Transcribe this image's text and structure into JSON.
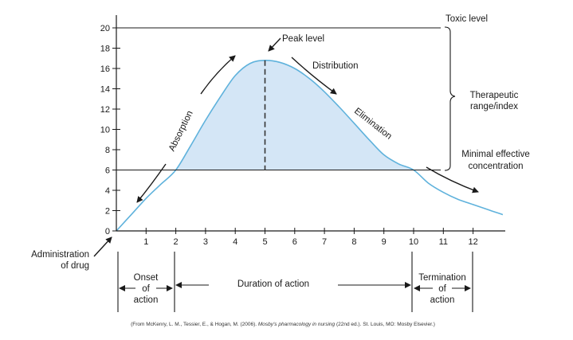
{
  "chart_data": {
    "type": "area",
    "x": [
      0,
      0.5,
      1,
      1.5,
      2,
      2.5,
      3,
      3.5,
      4,
      4.5,
      5,
      5.5,
      6,
      6.5,
      7,
      7.5,
      8,
      8.5,
      9,
      9.5,
      10,
      10.5,
      11,
      11.5,
      12,
      12.5,
      13
    ],
    "y": [
      0,
      1.6,
      3.2,
      4.6,
      6.0,
      8.4,
      10.9,
      13.2,
      15.3,
      16.5,
      16.8,
      16.6,
      16.0,
      15.0,
      13.7,
      12.2,
      10.6,
      9.0,
      7.5,
      6.6,
      6.0,
      4.7,
      3.8,
      3.1,
      2.6,
      2.1,
      1.6
    ],
    "xlim": [
      0,
      13
    ],
    "ylim": [
      0,
      20
    ],
    "xticks": [
      1,
      2,
      3,
      4,
      5,
      6,
      7,
      8,
      9,
      10,
      11,
      12
    ],
    "yticks": [
      0,
      2,
      4,
      6,
      8,
      10,
      12,
      14,
      16,
      18,
      20
    ],
    "toxic_level": 20,
    "minimal_effective_concentration": 6,
    "peak": {
      "x": 5,
      "y": 16.8
    },
    "onset_x": 2,
    "termination_x": 10,
    "end_x": 12,
    "grid": false,
    "colors": {
      "curve": "#5fb2dc",
      "fill": "#d4e6f6",
      "axis": "#1a1a1a"
    }
  },
  "labels": {
    "toxic_level": "Toxic level",
    "peak_level": "Peak level",
    "distribution": "Distribution",
    "therapeutic_line1": "Therapeutic",
    "therapeutic_line2": "range/index",
    "absorption": "Absorption",
    "elimination": "Elimination",
    "minimal_line1": "Minimal effective",
    "minimal_line2": "concentration",
    "admin_line1": "Administration",
    "admin_line2": "of drug",
    "onset_line1": "Onset",
    "onset_line2": "of",
    "onset_line3": "action",
    "duration": "Duration of action",
    "termination_line1": "Termination",
    "termination_line2": "of",
    "termination_line3": "action",
    "citation_part1": "(From McKenry, L. M., Tessier, E., & Hogan, M. (2006). ",
    "citation_italic": "Mosby's pharmacology in nursing",
    "citation_part2": " (22nd ed.). St. Louis, MO: Mosby Elsevier.)"
  }
}
